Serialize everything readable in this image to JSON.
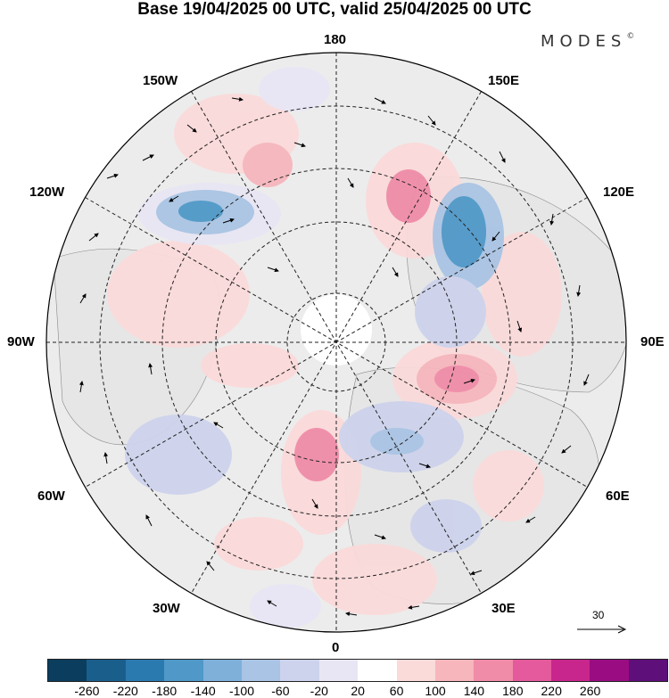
{
  "title": "Base 19/04/2025 00 UTC, valid 25/04/2025 00 UTC",
  "brand": "MODES",
  "brand_mark": "©",
  "lon_labels": {
    "top": "180",
    "bottom": "0",
    "left": "90W",
    "right": "90E",
    "w150": "150W",
    "e150": "150E",
    "w120": "120W",
    "e120": "120E",
    "w60": "60W",
    "e60": "60E",
    "w30": "30W",
    "e30": "30E"
  },
  "wind_scale_label": "30",
  "colorbar": {
    "colors": [
      "#0b3d5e",
      "#1a5e8c",
      "#2a7ab0",
      "#4f98c8",
      "#7fb0da",
      "#a9c4e4",
      "#cdd3ec",
      "#e8e6f4",
      "#ffffff",
      "#fbdada",
      "#f6b6bc",
      "#f08ca8",
      "#e45a9c",
      "#c8268c",
      "#9a0d82",
      "#5e0f7a"
    ],
    "tick_labels": [
      "-260",
      "-220",
      "-180",
      "-140",
      "-100",
      "-60",
      "-20",
      "20",
      "60",
      "100",
      "140",
      "180",
      "220",
      "260"
    ]
  }
}
